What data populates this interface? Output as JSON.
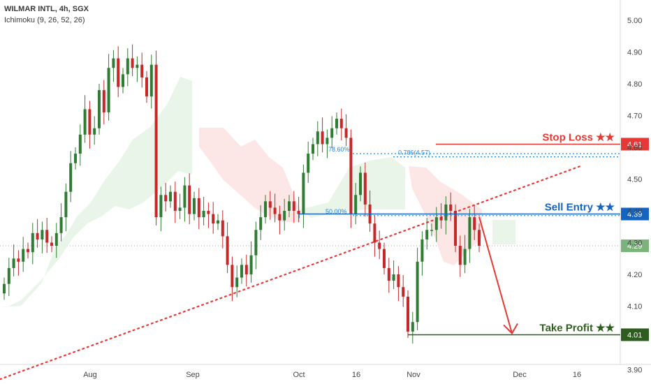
{
  "header": {
    "symbol_line": "WILMAR INTL, 4h, SGX",
    "indicator_line": "Ichimoku (9, 26, 52, 26)"
  },
  "colors": {
    "bull_candle": "#2e7d32",
    "bear_candle": "#c62828",
    "cloud_bull": "#e6f4e6",
    "cloud_bear": "#fde3e3",
    "stop_loss": "#e53935",
    "sell_entry": "#1565c0",
    "take_profit": "#2e5e1e",
    "trendline": "#e53935",
    "fib_line": "#1e88e5",
    "last_price_badge": "#7bb37b"
  },
  "chart_data": {
    "type": "candlestick",
    "symbol": "WILMAR INTL",
    "timeframe": "4h",
    "exchange": "SGX",
    "indicator": "Ichimoku (9, 26, 52, 26)",
    "ylim": [
      3.8,
      5.05
    ],
    "y_ticks": [
      "3.90",
      "4.10",
      "4.20",
      "4.30",
      "4.40",
      "4.50",
      "4.60",
      "4.70",
      "4.80",
      "4.90",
      "5.00"
    ],
    "x_ticks": [
      "Aug",
      "Sep",
      "Oct",
      "16",
      "Nov",
      "Dec",
      "16"
    ],
    "levels": [
      {
        "name": "Stop Loss ★★",
        "value": 4.61,
        "badge": "4.61"
      },
      {
        "name": "Sell Entry ★★",
        "value": 4.39,
        "badge": "4.39"
      },
      {
        "name": "Take Profit ★★",
        "value": 4.01,
        "badge": "4.01"
      }
    ],
    "last_price": {
      "value": 4.29,
      "badge": "4.29"
    },
    "fib_levels": [
      {
        "label": "78.60%",
        "value": 4.58
      },
      {
        "label": "0.786(4.57)",
        "value": 4.57
      },
      {
        "label": "50.00%",
        "value": 4.385
      }
    ],
    "candles_close": [
      4.17,
      4.22,
      4.25,
      4.24,
      4.28,
      4.27,
      4.33,
      4.31,
      4.34,
      4.3,
      4.29,
      4.33,
      4.38,
      4.46,
      4.55,
      4.58,
      4.64,
      4.72,
      4.64,
      4.66,
      4.78,
      4.71,
      4.85,
      4.88,
      4.79,
      4.83,
      4.88,
      4.85,
      4.86,
      4.82,
      4.76,
      4.86,
      4.38,
      4.45,
      4.43,
      4.46,
      4.4,
      4.41,
      4.48,
      4.39,
      4.44,
      4.38,
      4.4,
      4.39,
      4.36,
      4.37,
      4.32,
      4.23,
      4.16,
      4.19,
      4.23,
      4.2,
      4.26,
      4.34,
      4.38,
      4.43,
      4.41,
      4.39,
      4.37,
      4.4,
      4.43,
      4.4,
      4.39,
      4.52,
      4.58,
      4.61,
      4.65,
      4.61,
      4.63,
      4.66,
      4.69,
      4.66,
      4.63,
      4.39,
      4.45,
      4.52,
      4.42,
      4.36,
      4.3,
      4.28,
      4.22,
      4.18,
      4.2,
      4.16,
      4.13,
      4.02,
      4.05,
      4.24,
      4.31,
      4.34,
      4.34,
      4.38,
      4.37,
      4.42,
      4.4,
      4.29,
      4.23,
      4.28,
      4.38,
      4.34,
      4.29
    ],
    "trendline": {
      "from": {
        "bar": 0,
        "value": 3.87
      },
      "to": {
        "bar": 100,
        "value": 4.54
      },
      "style": "dotted"
    },
    "projection": "arrow from 4.39 down to 4.01"
  }
}
